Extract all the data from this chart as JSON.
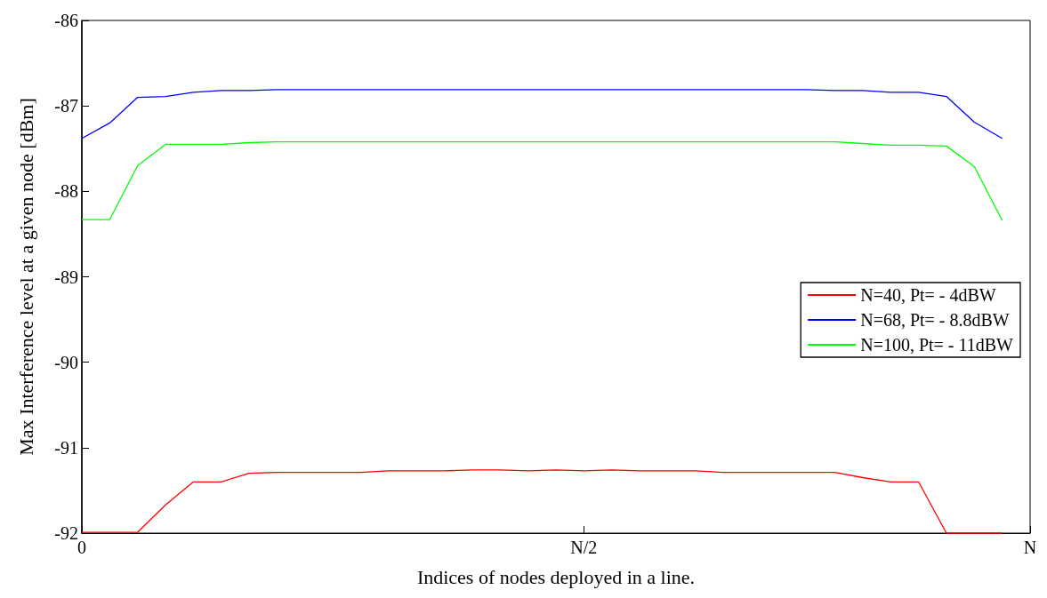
{
  "chart_data": {
    "type": "line",
    "xlabel": "Indices of nodes deployed in a line.",
    "ylabel": "Max Interference level at a given node [dBm]",
    "categories": [
      "0",
      null,
      null,
      null,
      null,
      null,
      null,
      null,
      null,
      null,
      null,
      null,
      null,
      null,
      null,
      null,
      null,
      null,
      "N/2",
      null,
      null,
      null,
      null,
      null,
      null,
      null,
      null,
      null,
      null,
      null,
      null,
      null,
      null,
      null,
      "N"
    ],
    "ylim": [
      -92,
      -86
    ],
    "yticks": [
      -92,
      -91,
      -90,
      -89,
      -88,
      -87,
      -86
    ],
    "grid": false,
    "legend": "right",
    "marker": "none",
    "line_style": "solid",
    "series": [
      {
        "name": "N=40, Pt= - 4dBW",
        "color": "#ff0000",
        "values": [
          -91.99,
          -91.99,
          -91.99,
          -91.67,
          -91.4,
          -91.4,
          -91.3,
          -91.29,
          -91.29,
          -91.29,
          -91.29,
          -91.27,
          -91.27,
          -91.27,
          -91.26,
          -91.26,
          -91.27,
          -91.26,
          -91.27,
          -91.26,
          -91.27,
          -91.27,
          -91.27,
          -91.29,
          -91.29,
          -91.29,
          -91.29,
          -91.29,
          -91.35,
          -91.4,
          -91.4,
          -92.0,
          -92.0,
          -92.0,
          null
        ]
      },
      {
        "name": "N=68, Pt= - 8.8dBW",
        "color": "#0000ff",
        "values": [
          -87.38,
          -87.2,
          -86.9,
          -86.89,
          -86.84,
          -86.82,
          -86.82,
          -86.81,
          -86.81,
          -86.81,
          -86.81,
          -86.81,
          -86.81,
          -86.81,
          -86.81,
          -86.81,
          -86.81,
          -86.81,
          -86.81,
          -86.81,
          -86.81,
          -86.81,
          -86.81,
          -86.81,
          -86.81,
          -86.81,
          -86.81,
          -86.82,
          -86.82,
          -86.84,
          -86.84,
          -86.89,
          -87.19,
          -87.38,
          null
        ]
      },
      {
        "name": "N=100, Pt= - 11dBW",
        "color": "#00ff00",
        "values": [
          -88.33,
          -88.33,
          -87.7,
          -87.45,
          -87.45,
          -87.45,
          -87.43,
          -87.42,
          -87.42,
          -87.42,
          -87.42,
          -87.42,
          -87.42,
          -87.42,
          -87.42,
          -87.42,
          -87.42,
          -87.42,
          -87.42,
          -87.42,
          -87.42,
          -87.42,
          -87.42,
          -87.42,
          -87.42,
          -87.42,
          -87.42,
          -87.42,
          -87.44,
          -87.46,
          -87.46,
          -87.47,
          -87.71,
          -88.34,
          null
        ]
      }
    ]
  }
}
